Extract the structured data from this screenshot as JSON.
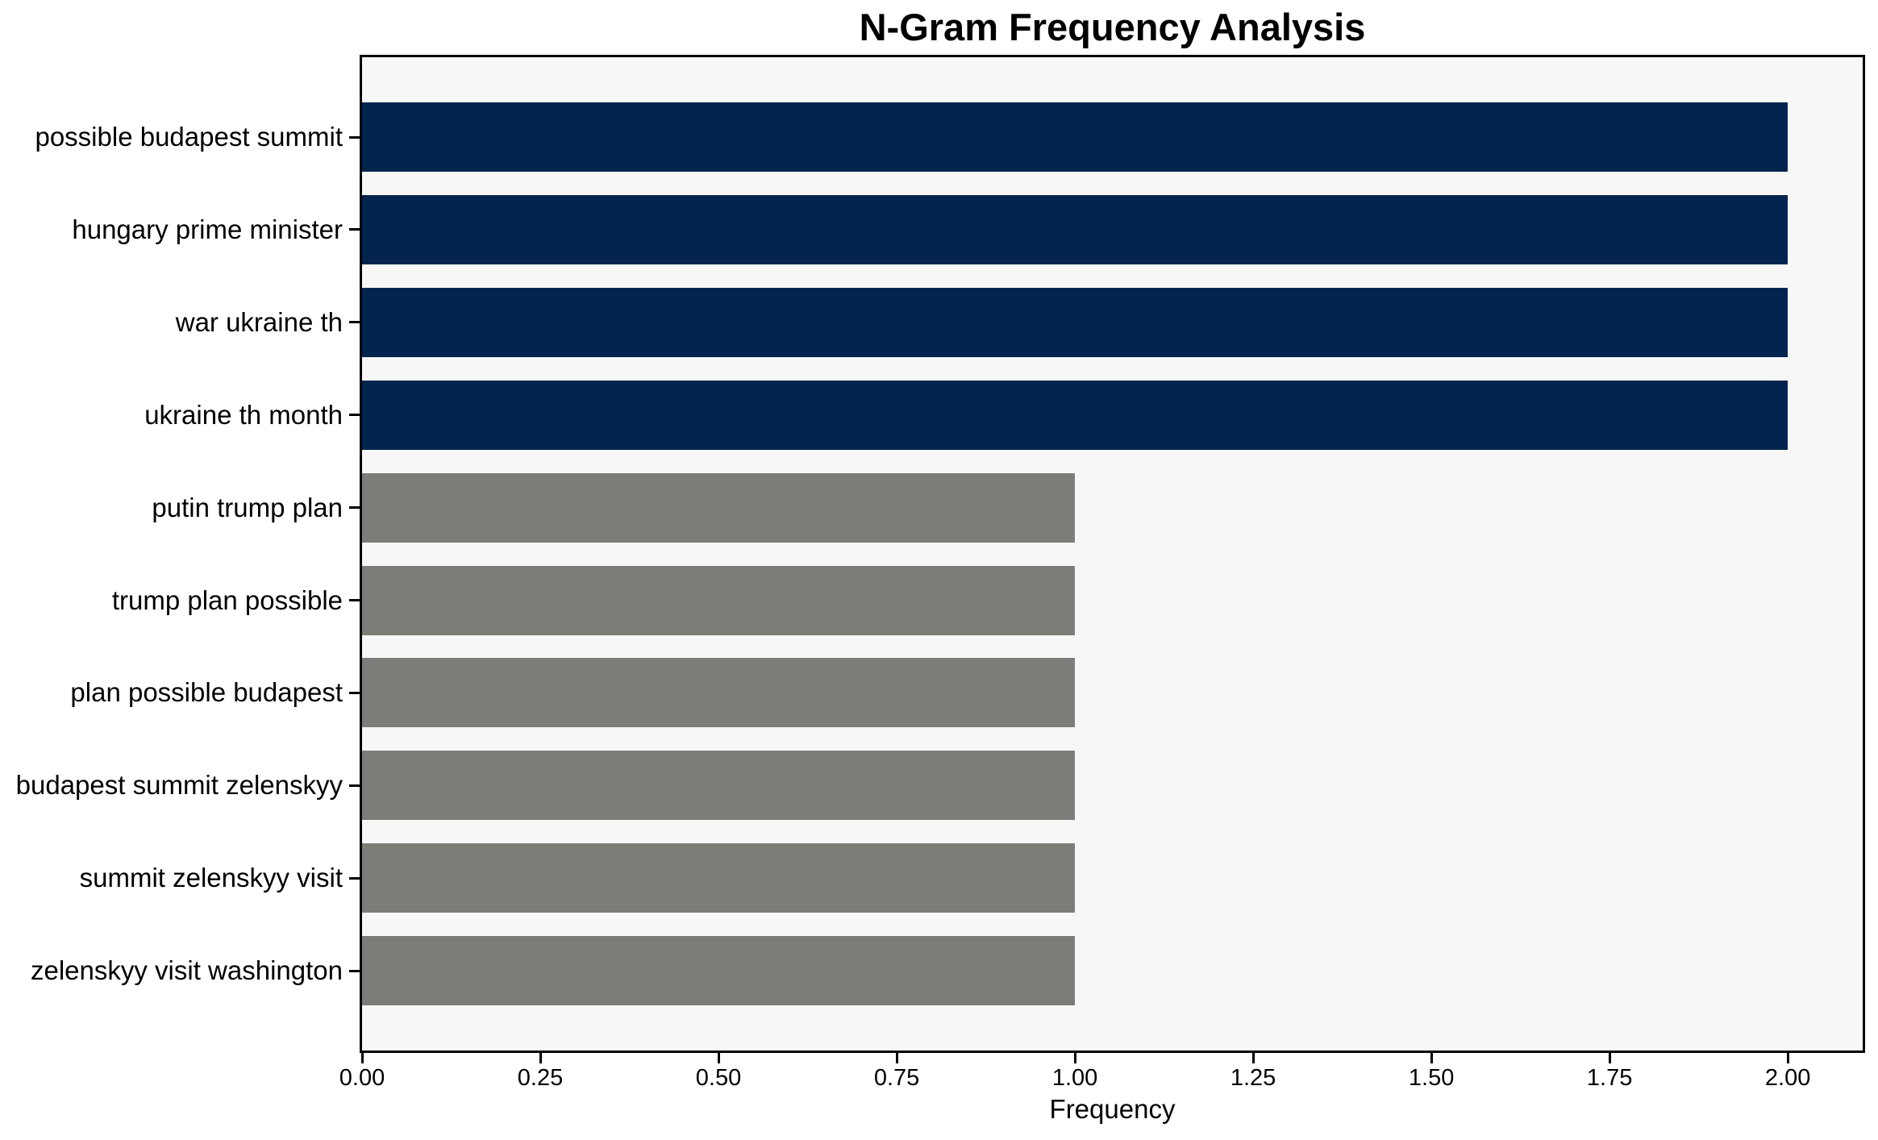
{
  "chart_data": {
    "type": "bar",
    "orientation": "horizontal",
    "title": "N-Gram Frequency Analysis",
    "xlabel": "Frequency",
    "ylabel": "",
    "categories": [
      "possible budapest summit",
      "hungary prime minister",
      "war ukraine th",
      "ukraine th month",
      "putin trump plan",
      "trump plan possible",
      "plan possible budapest",
      "budapest summit zelenskyy",
      "summit zelenskyy visit",
      "zelenskyy visit washington"
    ],
    "values": [
      2,
      2,
      2,
      2,
      1,
      1,
      1,
      1,
      1,
      1
    ],
    "bar_colors": [
      "#02244d",
      "#02244d",
      "#02244d",
      "#02244d",
      "#7c7c78",
      "#7c7c78",
      "#7c7c78",
      "#7c7c78",
      "#7c7c78",
      "#7c7c78"
    ],
    "xticks": {
      "values": [
        0,
        0.25,
        0.5,
        0.75,
        1.0,
        1.25,
        1.5,
        1.75,
        2.0
      ],
      "labels": [
        "0.00",
        "0.25",
        "0.50",
        "0.75",
        "1.00",
        "1.25",
        "1.50",
        "1.75",
        "2.00"
      ]
    },
    "xlim": [
      0,
      2.105
    ],
    "grid": false,
    "legend": false,
    "colors": {
      "highlight": "#02244d",
      "base": "#7c7c78",
      "plot_bg": "#f7f7f8",
      "spine": "#000000",
      "text": "#000000",
      "figure_bg": "#ffffff"
    }
  }
}
